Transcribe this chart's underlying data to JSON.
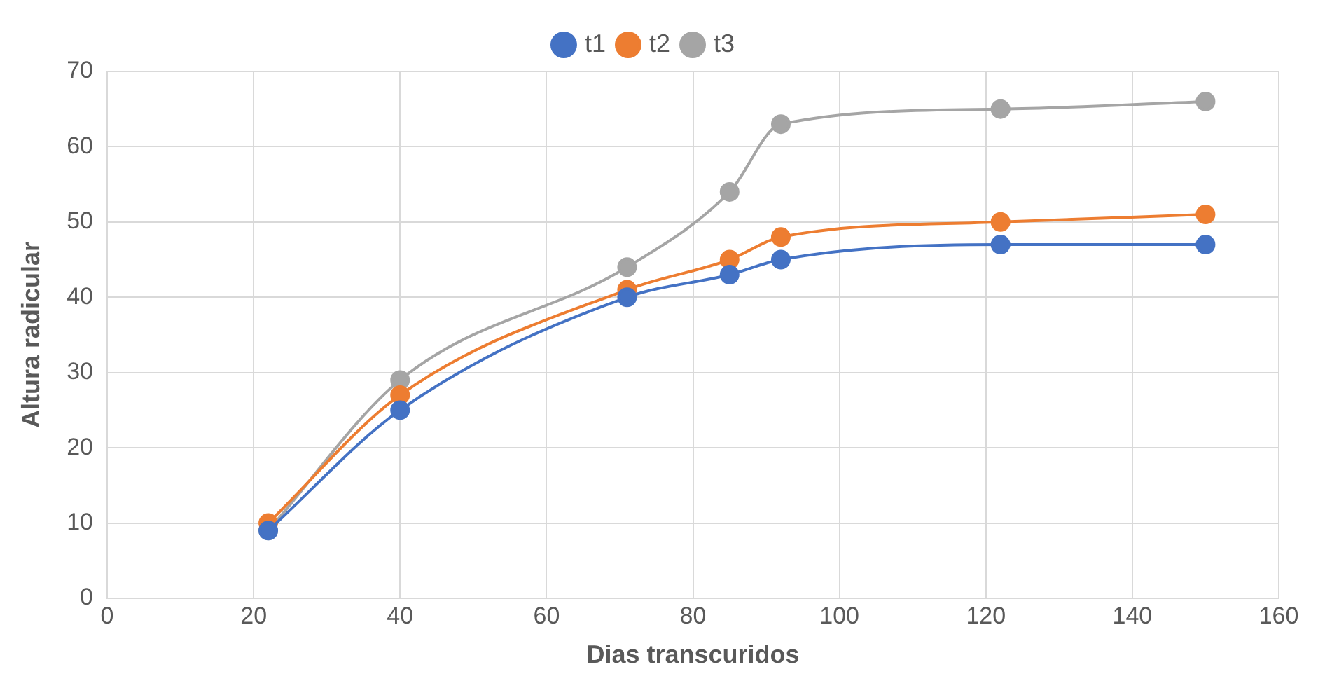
{
  "chart_data": {
    "type": "line",
    "xlabel": "Dias transcuridos",
    "ylabel": "Altura radicular",
    "x": [
      22,
      40,
      71,
      85,
      92,
      122,
      150
    ],
    "series": [
      {
        "name": "t1",
        "color": "#4472c4",
        "values": [
          9,
          25,
          40,
          43,
          45,
          47,
          47
        ]
      },
      {
        "name": "t2",
        "color": "#ed7d31",
        "values": [
          10,
          27,
          41,
          45,
          48,
          50,
          51
        ]
      },
      {
        "name": "t3",
        "color": "#a5a5a5",
        "values": [
          9,
          29,
          44,
          54,
          63,
          65,
          66
        ]
      }
    ],
    "xlim": [
      0,
      160
    ],
    "xticks": [
      0,
      20,
      40,
      60,
      80,
      100,
      120,
      140,
      160
    ],
    "ylim": [
      0,
      70
    ],
    "yticks": [
      0,
      10,
      20,
      30,
      40,
      50,
      60,
      70
    ],
    "grid": true,
    "legend": "top",
    "marker": "circle",
    "line_style": "solid"
  }
}
